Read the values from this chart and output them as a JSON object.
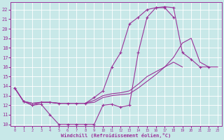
{
  "bg_color": "#c8e8e8",
  "line_color": "#993399",
  "xlabel": "Windchill (Refroidissement éolien,°C)",
  "xlim": [
    -0.5,
    23.5
  ],
  "ylim": [
    9.8,
    22.8
  ],
  "xticks": [
    0,
    1,
    2,
    3,
    4,
    5,
    6,
    7,
    8,
    9,
    10,
    11,
    12,
    13,
    14,
    15,
    16,
    17,
    18,
    19,
    20,
    21,
    22,
    23
  ],
  "yticks": [
    10,
    11,
    12,
    13,
    14,
    15,
    16,
    17,
    18,
    19,
    20,
    21,
    22
  ],
  "curve_dip_x": [
    0,
    1,
    2,
    3,
    4,
    5,
    6,
    7,
    8,
    9,
    10,
    11,
    12,
    13,
    14,
    15,
    16,
    17,
    18,
    19,
    20,
    21,
    22
  ],
  "curve_dip_y": [
    13.8,
    12.4,
    12.0,
    12.1,
    11.0,
    10.0,
    10.0,
    10.0,
    10.0,
    10.0,
    12.0,
    12.1,
    11.8,
    12.0,
    17.5,
    21.2,
    22.2,
    22.3,
    22.2,
    17.5,
    16.8,
    16.0,
    16.0
  ],
  "curve_high_x": [
    0,
    1,
    2,
    3,
    4,
    5,
    6,
    7,
    8,
    9,
    10,
    11,
    12,
    13,
    14,
    15,
    16,
    17,
    18
  ],
  "curve_high_y": [
    13.8,
    12.4,
    12.0,
    12.3,
    12.3,
    12.2,
    12.2,
    12.2,
    12.2,
    12.8,
    13.5,
    16.0,
    17.5,
    20.5,
    21.2,
    22.0,
    22.2,
    22.2,
    21.2
  ],
  "curve_low1_x": [
    0,
    1,
    2,
    3,
    4,
    5,
    6,
    7,
    8,
    9,
    10,
    11,
    12,
    13,
    14,
    15,
    16,
    17,
    18,
    19,
    20,
    21,
    22,
    23
  ],
  "curve_low1_y": [
    13.8,
    12.4,
    12.2,
    12.3,
    12.3,
    12.2,
    12.2,
    12.2,
    12.2,
    12.5,
    13.0,
    13.2,
    13.3,
    13.5,
    14.2,
    15.0,
    15.5,
    16.0,
    17.0,
    18.5,
    19.0,
    16.5,
    16.0,
    16.0
  ],
  "curve_low2_x": [
    0,
    1,
    2,
    3,
    4,
    5,
    6,
    7,
    8,
    9,
    10,
    11,
    12,
    13,
    14,
    15,
    16,
    17,
    18,
    19,
    20,
    21,
    22,
    23
  ],
  "curve_low2_y": [
    13.8,
    12.4,
    12.2,
    12.3,
    12.3,
    12.2,
    12.2,
    12.2,
    12.2,
    12.3,
    12.8,
    13.0,
    13.1,
    13.2,
    13.8,
    14.5,
    15.2,
    16.0,
    16.5,
    16.0,
    null,
    null,
    null,
    null
  ]
}
